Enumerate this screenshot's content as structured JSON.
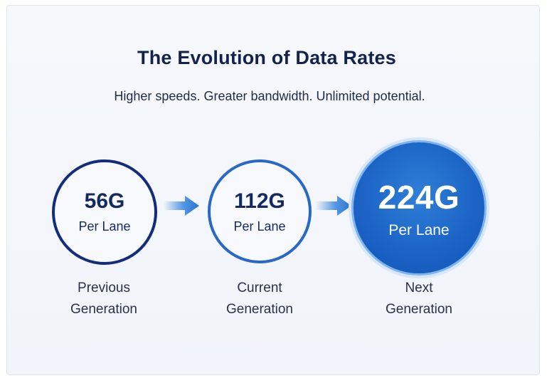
{
  "diagram": {
    "title": "The Evolution of Data Rates",
    "subtitle": "Higher speeds. Greater bandwidth. Unlimited potential.",
    "stages": [
      {
        "rate": "56G",
        "unit": "Per Lane",
        "label_line1": "Previous",
        "label_line2": "Generation"
      },
      {
        "rate": "112G",
        "unit": "Per Lane",
        "label_line1": "Current",
        "label_line2": "Generation"
      },
      {
        "rate": "224G",
        "unit": "Per Lane",
        "label_line1": "Next",
        "label_line2": "Generation"
      }
    ],
    "colors": {
      "previous_ring": "#142d7a",
      "current_ring": "#2a68c5",
      "next_fill": "#1a62c4",
      "arrow": "#3a86df"
    }
  }
}
